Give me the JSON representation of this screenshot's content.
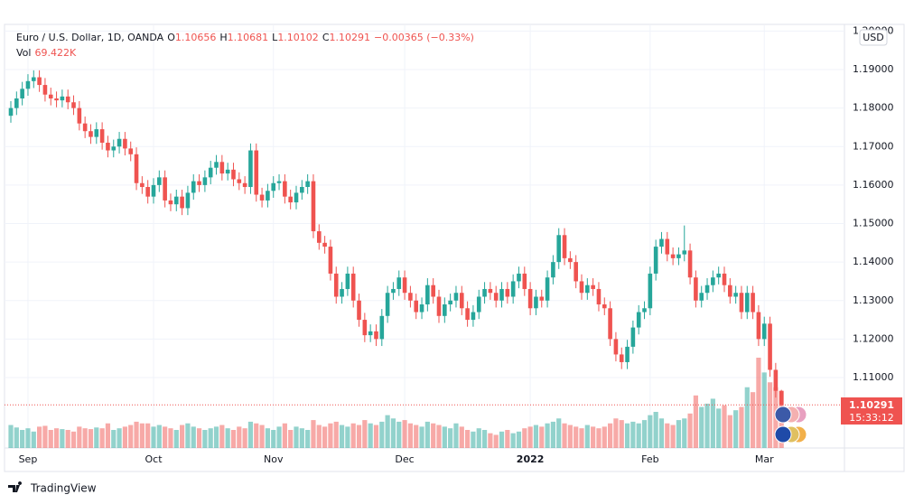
{
  "chart_data": {
    "type": "candlestick",
    "title": "Euro / U.S. Dollar, 1D, OANDA",
    "ohlc_labels": [
      "O",
      "H",
      "L",
      "C"
    ],
    "change": "−0.00365 (−0.33%)",
    "volume_title": "Vol",
    "last_volume_label": "69.422K",
    "currency": "USD",
    "countdown": "15:33:12",
    "brand": "TradingView",
    "up_color": "#26a69a",
    "down_color": "#ef5350",
    "grid": true,
    "ylim": [
      1.0917,
      1.2015
    ],
    "yticks": [
      {
        "value": 1.11,
        "label": "1.11000"
      },
      {
        "value": 1.12,
        "label": "1.12000"
      },
      {
        "value": 1.13,
        "label": "1.13000"
      },
      {
        "value": 1.14,
        "label": "1.14000"
      },
      {
        "value": 1.15,
        "label": "1.15000"
      },
      {
        "value": 1.16,
        "label": "1.16000"
      },
      {
        "value": 1.17,
        "label": "1.17000"
      },
      {
        "value": 1.18,
        "label": "1.18000"
      },
      {
        "value": 1.19,
        "label": "1.19000"
      },
      {
        "value": 1.2,
        "label": "1.20000"
      }
    ],
    "xticks": [
      {
        "value": 3,
        "label": "Sep"
      },
      {
        "value": 25,
        "label": "Oct"
      },
      {
        "value": 46,
        "label": "Nov"
      },
      {
        "value": 69,
        "label": "Dec"
      },
      {
        "value": 91,
        "label": "2022"
      },
      {
        "value": 112,
        "label": "Feb"
      },
      {
        "value": 132,
        "label": "Mar"
      }
    ],
    "open": [
      1.178,
      1.18,
      1.1825,
      1.185,
      1.187,
      1.188,
      1.186,
      1.1835,
      1.1825,
      1.182,
      1.183,
      1.1815,
      1.18,
      1.176,
      1.174,
      1.1725,
      1.1745,
      1.171,
      1.169,
      1.17,
      1.172,
      1.1695,
      1.168,
      1.1605,
      1.1595,
      1.157,
      1.16,
      1.162,
      1.156,
      1.155,
      1.157,
      1.154,
      1.158,
      1.161,
      1.16,
      1.162,
      1.1645,
      1.166,
      1.163,
      1.164,
      1.1615,
      1.1605,
      1.1595,
      1.169,
      1.1575,
      1.156,
      1.1585,
      1.1605,
      1.161,
      1.157,
      1.1555,
      1.158,
      1.1595,
      1.161,
      1.148,
      1.145,
      1.144,
      1.137,
      1.131,
      1.133,
      1.137,
      1.13,
      1.125,
      1.121,
      1.122,
      1.12,
      1.126,
      1.132,
      1.133,
      1.136,
      1.132,
      1.13,
      1.127,
      1.129,
      1.134,
      1.131,
      1.126,
      1.129,
      1.13,
      1.132,
      1.128,
      1.125,
      1.127,
      1.131,
      1.133,
      1.132,
      1.13,
      1.133,
      1.131,
      1.135,
      1.137,
      1.133,
      1.128,
      1.131,
      1.13,
      1.136,
      1.14,
      1.147,
      1.141,
      1.14,
      1.135,
      1.132,
      1.134,
      1.133,
      1.129,
      1.128,
      1.12,
      1.116,
      1.114,
      1.118,
      1.123,
      1.127,
      1.128,
      1.137,
      1.144,
      1.146,
      1.142,
      1.141,
      1.142,
      1.143,
      1.136,
      1.13,
      1.132,
      1.134,
      1.136,
      1.137,
      1.134,
      1.131,
      1.132,
      1.127,
      1.132,
      1.127,
      1.12,
      1.124,
      1.112,
      1.10656
    ],
    "high": [
      1.1818,
      1.1843,
      1.1868,
      1.1888,
      1.1898,
      1.1898,
      1.1878,
      1.1853,
      1.1843,
      1.1848,
      1.1848,
      1.1833,
      1.1818,
      1.1778,
      1.1758,
      1.1763,
      1.1763,
      1.1728,
      1.1718,
      1.1738,
      1.1738,
      1.1713,
      1.1698,
      1.1623,
      1.1613,
      1.1618,
      1.1638,
      1.1638,
      1.1578,
      1.1588,
      1.1588,
      1.1598,
      1.1628,
      1.1628,
      1.1638,
      1.1663,
      1.1678,
      1.1678,
      1.1658,
      1.1658,
      1.1633,
      1.1623,
      1.1708,
      1.1708,
      1.1593,
      1.1603,
      1.1623,
      1.1628,
      1.1628,
      1.1588,
      1.1598,
      1.1613,
      1.1628,
      1.1628,
      1.1498,
      1.1468,
      1.1458,
      1.1388,
      1.1348,
      1.1388,
      1.1388,
      1.1318,
      1.1268,
      1.1238,
      1.1238,
      1.1278,
      1.1338,
      1.1348,
      1.1378,
      1.1378,
      1.1338,
      1.1318,
      1.1308,
      1.1358,
      1.1358,
      1.1328,
      1.1308,
      1.1318,
      1.1338,
      1.1338,
      1.1298,
      1.1288,
      1.1328,
      1.1348,
      1.1348,
      1.1338,
      1.1348,
      1.1348,
      1.1368,
      1.1388,
      1.1388,
      1.1348,
      1.1328,
      1.1328,
      1.1378,
      1.1418,
      1.1488,
      1.1488,
      1.1428,
      1.1418,
      1.1368,
      1.1358,
      1.1358,
      1.1348,
      1.1308,
      1.1298,
      1.1218,
      1.1178,
      1.1198,
      1.1248,
      1.1288,
      1.1298,
      1.1388,
      1.1458,
      1.1478,
      1.1478,
      1.1438,
      1.1438,
      1.1495,
      1.1448,
      1.1378,
      1.1338,
      1.1358,
      1.1378,
      1.1388,
      1.1388,
      1.1358,
      1.1338,
      1.1338,
      1.1338,
      1.1338,
      1.1288,
      1.1258,
      1.1258,
      1.1138,
      1.10681
    ],
    "low": [
      1.1762,
      1.1782,
      1.1807,
      1.1832,
      1.1852,
      1.1842,
      1.1817,
      1.1807,
      1.1802,
      1.1802,
      1.1797,
      1.1782,
      1.1742,
      1.1722,
      1.1707,
      1.1707,
      1.1692,
      1.1672,
      1.1672,
      1.1682,
      1.1677,
      1.1662,
      1.1587,
      1.1577,
      1.1552,
      1.1552,
      1.1582,
      1.1542,
      1.1532,
      1.1532,
      1.1522,
      1.1522,
      1.1562,
      1.1582,
      1.1582,
      1.1602,
      1.1627,
      1.1612,
      1.1612,
      1.1597,
      1.1587,
      1.1577,
      1.1577,
      1.1557,
      1.1542,
      1.1542,
      1.1567,
      1.1587,
      1.1552,
      1.1537,
      1.1537,
      1.1562,
      1.1577,
      1.1462,
      1.1432,
      1.1422,
      1.1352,
      1.1292,
      1.1292,
      1.1312,
      1.1282,
      1.1232,
      1.1192,
      1.1192,
      1.1182,
      1.1182,
      1.1242,
      1.1302,
      1.1312,
      1.1302,
      1.1282,
      1.1252,
      1.1252,
      1.1272,
      1.1292,
      1.1242,
      1.1242,
      1.1272,
      1.1282,
      1.1262,
      1.1232,
      1.1232,
      1.1252,
      1.1292,
      1.1302,
      1.1282,
      1.1282,
      1.1292,
      1.1292,
      1.1332,
      1.1312,
      1.1262,
      1.1262,
      1.1282,
      1.1282,
      1.1342,
      1.1382,
      1.1392,
      1.1382,
      1.1332,
      1.1302,
      1.1302,
      1.1312,
      1.1272,
      1.1262,
      1.1182,
      1.1142,
      1.1122,
      1.1122,
      1.1162,
      1.1212,
      1.1252,
      1.1262,
      1.1352,
      1.1422,
      1.1402,
      1.1392,
      1.1392,
      1.1402,
      1.1342,
      1.1282,
      1.1282,
      1.1302,
      1.1322,
      1.1342,
      1.1322,
      1.1292,
      1.1292,
      1.1252,
      1.1252,
      1.1252,
      1.1182,
      1.1182,
      1.1102,
      1.1048,
      1.10102
    ],
    "close": [
      1.18,
      1.1825,
      1.185,
      1.187,
      1.188,
      1.186,
      1.1835,
      1.1825,
      1.182,
      1.183,
      1.1815,
      1.18,
      1.176,
      1.174,
      1.1725,
      1.1745,
      1.171,
      1.169,
      1.17,
      1.172,
      1.1695,
      1.168,
      1.1605,
      1.1595,
      1.157,
      1.16,
      1.162,
      1.156,
      1.155,
      1.157,
      1.154,
      1.158,
      1.161,
      1.16,
      1.162,
      1.1645,
      1.166,
      1.163,
      1.164,
      1.1615,
      1.1605,
      1.1595,
      1.169,
      1.1575,
      1.156,
      1.1585,
      1.1605,
      1.161,
      1.157,
      1.1555,
      1.158,
      1.1595,
      1.161,
      1.148,
      1.145,
      1.144,
      1.137,
      1.131,
      1.133,
      1.137,
      1.13,
      1.125,
      1.121,
      1.122,
      1.12,
      1.126,
      1.132,
      1.133,
      1.136,
      1.132,
      1.13,
      1.127,
      1.129,
      1.134,
      1.131,
      1.126,
      1.129,
      1.13,
      1.132,
      1.128,
      1.125,
      1.127,
      1.131,
      1.133,
      1.132,
      1.13,
      1.133,
      1.131,
      1.135,
      1.137,
      1.133,
      1.128,
      1.131,
      1.13,
      1.136,
      1.14,
      1.147,
      1.141,
      1.14,
      1.135,
      1.132,
      1.134,
      1.133,
      1.129,
      1.128,
      1.12,
      1.116,
      1.114,
      1.118,
      1.123,
      1.127,
      1.128,
      1.137,
      1.144,
      1.146,
      1.142,
      1.141,
      1.142,
      1.143,
      1.136,
      1.13,
      1.132,
      1.134,
      1.136,
      1.137,
      1.134,
      1.131,
      1.132,
      1.127,
      1.132,
      1.127,
      1.12,
      1.124,
      1.112,
      1.10656,
      1.10291
    ],
    "volume": [
      28000,
      25000,
      22000,
      24000,
      20000,
      26000,
      27000,
      22000,
      24000,
      23000,
      22000,
      20000,
      26000,
      24000,
      23000,
      25000,
      24000,
      30000,
      22000,
      24000,
      26000,
      28000,
      32000,
      30000,
      30000,
      26000,
      28000,
      26000,
      24000,
      22000,
      28000,
      30000,
      26000,
      24000,
      22000,
      24000,
      26000,
      28000,
      24000,
      22000,
      26000,
      24000,
      32000,
      30000,
      28000,
      24000,
      22000,
      26000,
      30000,
      22000,
      26000,
      24000,
      22000,
      34000,
      28000,
      26000,
      30000,
      32000,
      28000,
      26000,
      30000,
      28000,
      34000,
      30000,
      28000,
      32000,
      40000,
      36000,
      32000,
      34000,
      30000,
      28000,
      26000,
      32000,
      30000,
      28000,
      26000,
      24000,
      30000,
      26000,
      22000,
      20000,
      24000,
      22000,
      18000,
      16000,
      20000,
      22000,
      18000,
      20000,
      24000,
      26000,
      28000,
      26000,
      30000,
      32000,
      36000,
      30000,
      28000,
      26000,
      24000,
      28000,
      26000,
      24000,
      26000,
      30000,
      36000,
      34000,
      30000,
      32000,
      30000,
      34000,
      40000,
      44000,
      36000,
      30000,
      28000,
      34000,
      36000,
      42000,
      64000,
      50000,
      54000,
      60000,
      48000,
      52000,
      40000,
      46000,
      50000,
      74000,
      68000,
      110000,
      92000,
      80000,
      74000,
      69422
    ]
  }
}
